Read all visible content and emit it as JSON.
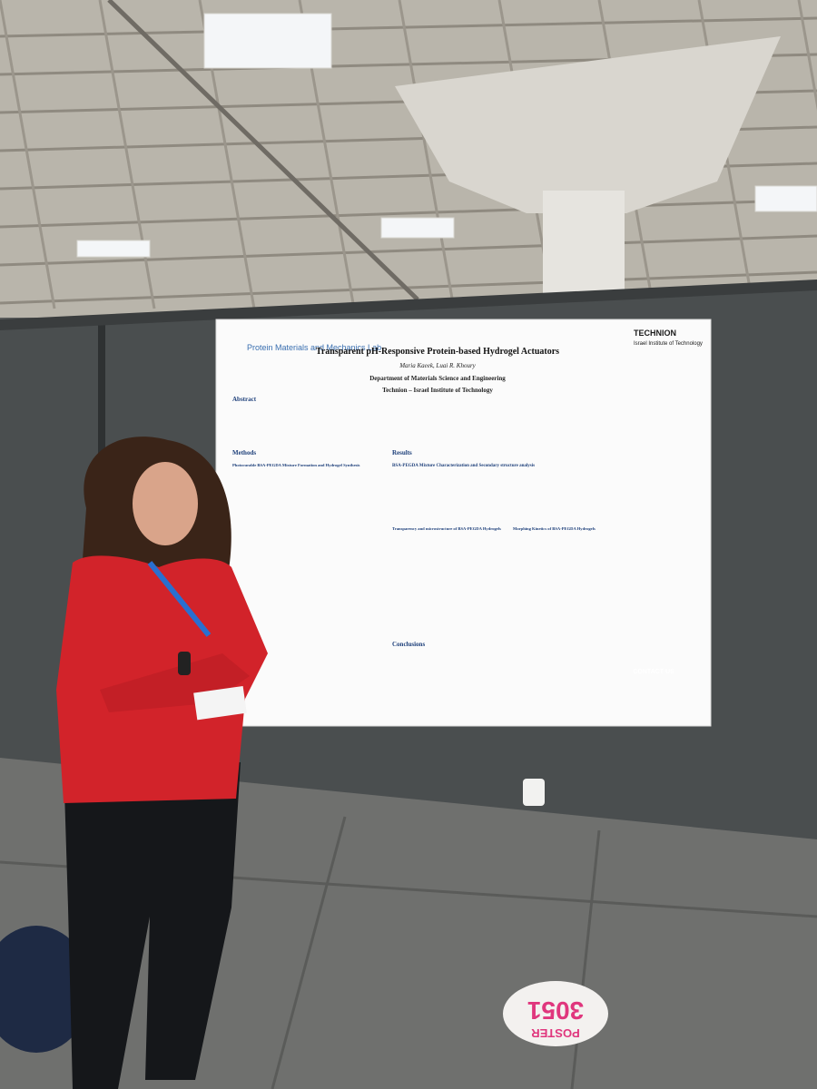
{
  "poster": {
    "lab_name": "Protein Materials and Mechanics Lab",
    "title": "Transparent pH-Responsive Protein-based Hydrogel Actuators",
    "authors": "Maria Kaeek, Luai R. Khoury",
    "department": "Department of Materials Science and Engineering",
    "institution": "Technion – Israel Institute of Technology",
    "logo_name": "TECHNION",
    "logo_subtitle": "Israel Institute of Technology",
    "sections": {
      "abstract": "Abstract",
      "methods": "Methods",
      "methods_heading": "Photocurable BSA-PEGDA Mixture Formation and Hydrogel Synthesis",
      "results": "Results",
      "results_heading_1": "BSA-PEGDA Mixture Characterization and Secondary structure analysis",
      "results_heading_2": "Transparency and microstructure of BSA-PEGDA Hydrogels",
      "results_heading_3": "Morphing Kinetics of BSA-PEGDA Hydrogels",
      "conclusions": "Conclusions"
    },
    "contact": "CONTACT US"
  },
  "floor_sign": {
    "label": "POSTER",
    "number": "3051"
  }
}
